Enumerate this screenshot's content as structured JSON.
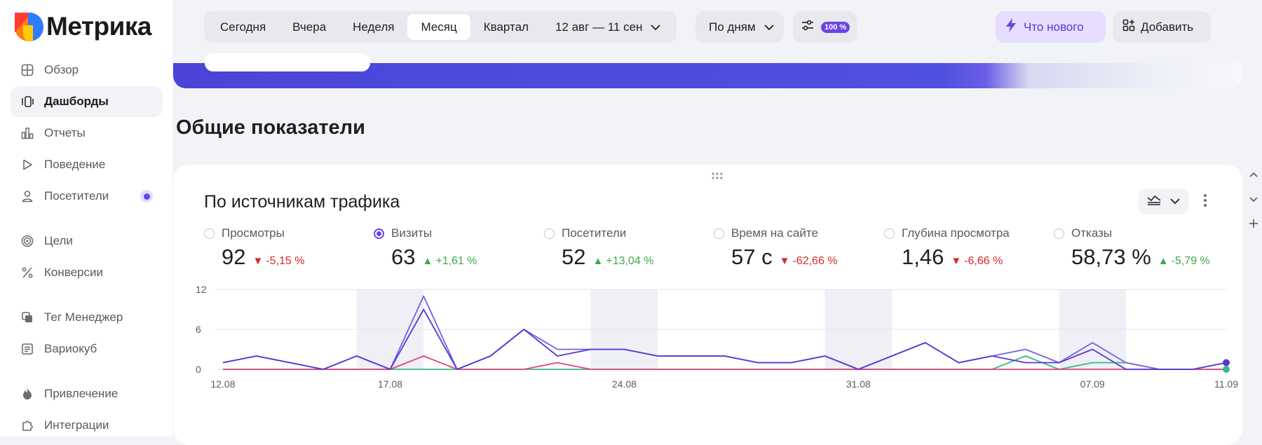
{
  "app": {
    "logo_text": "Метрика"
  },
  "sidebar": {
    "items": [
      {
        "label": "Обзор",
        "icon": "grid-icon"
      },
      {
        "label": "Дашборды",
        "icon": "dashboards-icon",
        "active": true
      },
      {
        "label": "Отчеты",
        "icon": "bar-chart-icon"
      },
      {
        "label": "Поведение",
        "icon": "play-icon"
      },
      {
        "label": "Посетители",
        "icon": "user-icon",
        "badge": "new-dot"
      },
      {
        "label": "Цели",
        "icon": "target-icon"
      },
      {
        "label": "Конверсии",
        "icon": "percent-icon"
      },
      {
        "label": "Тег Менеджер",
        "icon": "tag-manager-icon"
      },
      {
        "label": "Вариокуб",
        "icon": "variocube-icon"
      },
      {
        "label": "Привлечение",
        "icon": "flame-icon"
      },
      {
        "label": "Интеграции",
        "icon": "puzzle-icon"
      }
    ]
  },
  "toolbar": {
    "periods": [
      "Сегодня",
      "Вчера",
      "Неделя",
      "Месяц",
      "Квартал"
    ],
    "active_period": "Месяц",
    "date_range": "12 авг — 11 сен",
    "grouping": "По дням",
    "sampling_badge": "100 %",
    "whats_new": "Что нового",
    "add": "Добавить"
  },
  "section_title": "Общие показатели",
  "card": {
    "title": "По источникам трафика",
    "metrics": [
      {
        "label": "Просмотры",
        "value": "92",
        "delta": "-5,15 %",
        "dir": "down",
        "selected": false
      },
      {
        "label": "Визиты",
        "value": "63",
        "delta": "+1,61 %",
        "dir": "up",
        "selected": true
      },
      {
        "label": "Посетители",
        "value": "52",
        "delta": "+13,04 %",
        "dir": "up",
        "selected": false
      },
      {
        "label": "Время на сайте",
        "value": "57 с",
        "delta": "-62,66 %",
        "dir": "down",
        "selected": false
      },
      {
        "label": "Глубина просмотра",
        "value": "1,46",
        "delta": "-6,66 %",
        "dir": "down",
        "selected": false
      },
      {
        "label": "Отказы",
        "value": "58,73 %",
        "delta": "-5,79 %",
        "dir": "up",
        "selected": false
      }
    ]
  },
  "chart_data": {
    "type": "line",
    "x": [
      "12.08",
      "13.08",
      "14.08",
      "15.08",
      "16.08",
      "17.08",
      "18.08",
      "19.08",
      "20.08",
      "21.08",
      "22.08",
      "23.08",
      "24.08",
      "25.08",
      "26.08",
      "27.08",
      "28.08",
      "29.08",
      "30.08",
      "31.08",
      "01.09",
      "02.09",
      "03.09",
      "04.09",
      "05.09",
      "06.09",
      "07.09",
      "08.09",
      "09.09",
      "10.09",
      "11.09"
    ],
    "xticks": [
      "12.08",
      "17.08",
      "24.08",
      "31.08",
      "07.09",
      "11.09"
    ],
    "yticks": [
      0,
      6,
      12
    ],
    "ylim": [
      0,
      12
    ],
    "series": [
      {
        "color": "#7b5ee6",
        "values": [
          1,
          2,
          1,
          0,
          2,
          0,
          11,
          0,
          2,
          6,
          3,
          3,
          3,
          2,
          2,
          2,
          1,
          1,
          2,
          0,
          2,
          4,
          1,
          2,
          3,
          1,
          4,
          1,
          0,
          0,
          1
        ]
      },
      {
        "color": "#5b36d6",
        "values": [
          1,
          2,
          1,
          0,
          2,
          0,
          9,
          0,
          2,
          6,
          2,
          3,
          3,
          2,
          2,
          2,
          1,
          1,
          2,
          0,
          2,
          4,
          1,
          2,
          1,
          1,
          3,
          0,
          0,
          0,
          1
        ]
      },
      {
        "color": "#e0417f",
        "values": [
          0,
          0,
          0,
          0,
          0,
          0,
          2,
          0,
          0,
          0,
          1,
          0,
          0,
          0,
          0,
          0,
          0,
          0,
          0,
          0,
          0,
          0,
          0,
          0,
          0,
          0,
          0,
          0,
          0,
          0,
          0
        ]
      },
      {
        "color": "#3fb58a",
        "values": [
          0,
          0,
          0,
          0,
          0,
          0,
          0,
          0,
          0,
          0,
          0,
          0,
          0,
          0,
          0,
          0,
          0,
          0,
          0,
          0,
          0,
          0,
          0,
          0,
          2,
          0,
          1,
          1,
          0,
          0,
          0
        ]
      }
    ],
    "weekend_color": "#eef0f5",
    "grid": true
  }
}
